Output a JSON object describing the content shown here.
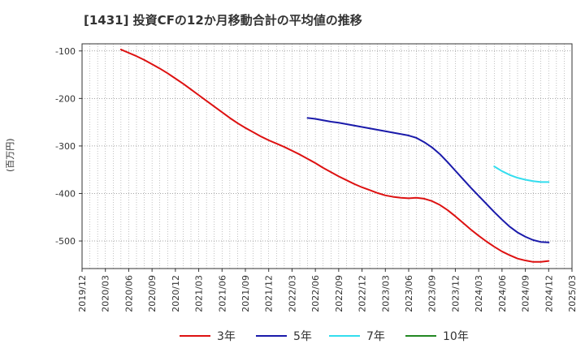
{
  "chart_data": {
    "type": "line",
    "title": "[1431]  投資CFの12か月移動合計の平均値の推移",
    "ylabel": "(百万円)",
    "xlabel": "",
    "ylim": [
      -558,
      -85
    ],
    "yticks": [
      -100,
      -200,
      -300,
      -400,
      -500
    ],
    "ytick_labels": [
      "-100",
      "-200",
      "-300",
      "-400",
      "-500"
    ],
    "xtick_labels": [
      "2019/12",
      "2020/03",
      "2020/06",
      "2020/09",
      "2020/12",
      "2021/03",
      "2021/06",
      "2021/09",
      "2021/12",
      "2022/03",
      "2022/06",
      "2022/09",
      "2022/12",
      "2023/03",
      "2023/06",
      "2023/09",
      "2023/12",
      "2024/03",
      "2024/06",
      "2024/09",
      "2024/12",
      "2025/03"
    ],
    "grid": true,
    "legend_position": "bottom",
    "series": [
      {
        "name": "3年",
        "color": "#dd1111",
        "x": [
          "2020/05",
          "2020/06",
          "2020/07",
          "2020/08",
          "2020/09",
          "2020/10",
          "2020/11",
          "2020/12",
          "2021/01",
          "2021/02",
          "2021/03",
          "2021/04",
          "2021/05",
          "2021/06",
          "2021/07",
          "2021/08",
          "2021/09",
          "2021/10",
          "2021/11",
          "2021/12",
          "2022/01",
          "2022/02",
          "2022/03",
          "2022/04",
          "2022/05",
          "2022/06",
          "2022/07",
          "2022/08",
          "2022/09",
          "2022/10",
          "2022/11",
          "2022/12",
          "2023/01",
          "2023/02",
          "2023/03",
          "2023/04",
          "2023/05",
          "2023/06",
          "2023/07",
          "2023/08",
          "2023/09",
          "2023/10",
          "2023/11",
          "2023/12",
          "2024/01",
          "2024/02",
          "2024/03",
          "2024/04",
          "2024/05",
          "2024/06",
          "2024/07",
          "2024/08",
          "2024/09",
          "2024/10",
          "2024/11",
          "2024/12"
        ],
        "values": [
          -97,
          -104,
          -111,
          -119,
          -128,
          -137,
          -147,
          -158,
          -169,
          -181,
          -193,
          -205,
          -217,
          -229,
          -241,
          -252,
          -262,
          -271,
          -280,
          -288,
          -295,
          -302,
          -310,
          -318,
          -327,
          -336,
          -346,
          -355,
          -364,
          -372,
          -380,
          -387,
          -393,
          -399,
          -404,
          -407,
          -409,
          -410,
          -409,
          -411,
          -416,
          -424,
          -435,
          -448,
          -462,
          -476,
          -489,
          -501,
          -512,
          -522,
          -530,
          -537,
          -541,
          -544,
          -544,
          -542
        ]
      },
      {
        "name": "5年",
        "color": "#1a1aaa",
        "x": [
          "2022/05",
          "2022/06",
          "2022/07",
          "2022/08",
          "2022/09",
          "2022/10",
          "2022/11",
          "2022/12",
          "2023/01",
          "2023/02",
          "2023/03",
          "2023/04",
          "2023/05",
          "2023/06",
          "2023/07",
          "2023/08",
          "2023/09",
          "2023/10",
          "2023/11",
          "2023/12",
          "2024/01",
          "2024/02",
          "2024/03",
          "2024/04",
          "2024/05",
          "2024/06",
          "2024/07",
          "2024/08",
          "2024/09",
          "2024/10",
          "2024/11",
          "2024/12"
        ],
        "values": [
          -241,
          -243,
          -246,
          -249,
          -251,
          -254,
          -257,
          -260,
          -263,
          -266,
          -269,
          -272,
          -275,
          -278,
          -283,
          -292,
          -303,
          -317,
          -334,
          -352,
          -370,
          -388,
          -405,
          -422,
          -439,
          -455,
          -470,
          -482,
          -491,
          -498,
          -502,
          -503
        ]
      },
      {
        "name": "7年",
        "color": "#33ddee",
        "x": [
          "2024/05",
          "2024/06",
          "2024/07",
          "2024/08",
          "2024/09",
          "2024/10",
          "2024/11",
          "2024/12"
        ],
        "values": [
          -343,
          -353,
          -361,
          -367,
          -371,
          -374,
          -376,
          -376
        ]
      },
      {
        "name": "10年",
        "color": "#228822",
        "x": [],
        "values": []
      }
    ]
  }
}
